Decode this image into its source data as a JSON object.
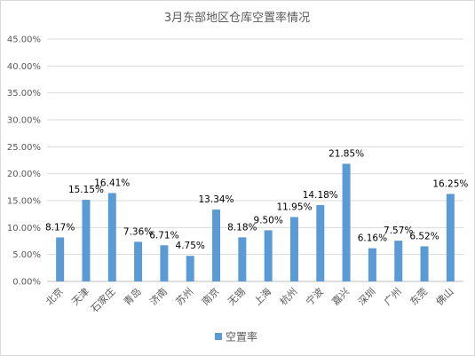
{
  "chart_data": {
    "type": "bar",
    "title": "3月东部地区仓库空置率情况",
    "categories": [
      "北京",
      "天津",
      "石家庄",
      "青岛",
      "济南",
      "苏州",
      "南京",
      "无锡",
      "上海",
      "杭州",
      "宁波",
      "嘉兴",
      "深圳",
      "广州",
      "东莞",
      "佛山"
    ],
    "series": [
      {
        "name": "空置率",
        "values": [
          8.17,
          15.15,
          16.41,
          7.36,
          6.71,
          4.75,
          13.34,
          8.18,
          9.5,
          11.95,
          14.18,
          21.85,
          6.16,
          7.57,
          6.52,
          16.25
        ],
        "labels": [
          "8.17%",
          "15.15%",
          "16.41%",
          "7.36%",
          "6.71%",
          "4.75%",
          "13.34%",
          "8.18%",
          "9.50%",
          "11.95%",
          "14.18%",
          "21.85%",
          "6.16%",
          "7.57%",
          "6.52%",
          "16.25%"
        ]
      }
    ],
    "yticks": [
      "0.00%",
      "5.00%",
      "10.00%",
      "15.00%",
      "20.00%",
      "25.00%",
      "30.00%",
      "35.00%",
      "40.00%",
      "45.00%"
    ],
    "ylim": [
      0,
      45
    ],
    "grid": true,
    "legend_position": "bottom",
    "bar_color": "#5b9bd5"
  }
}
